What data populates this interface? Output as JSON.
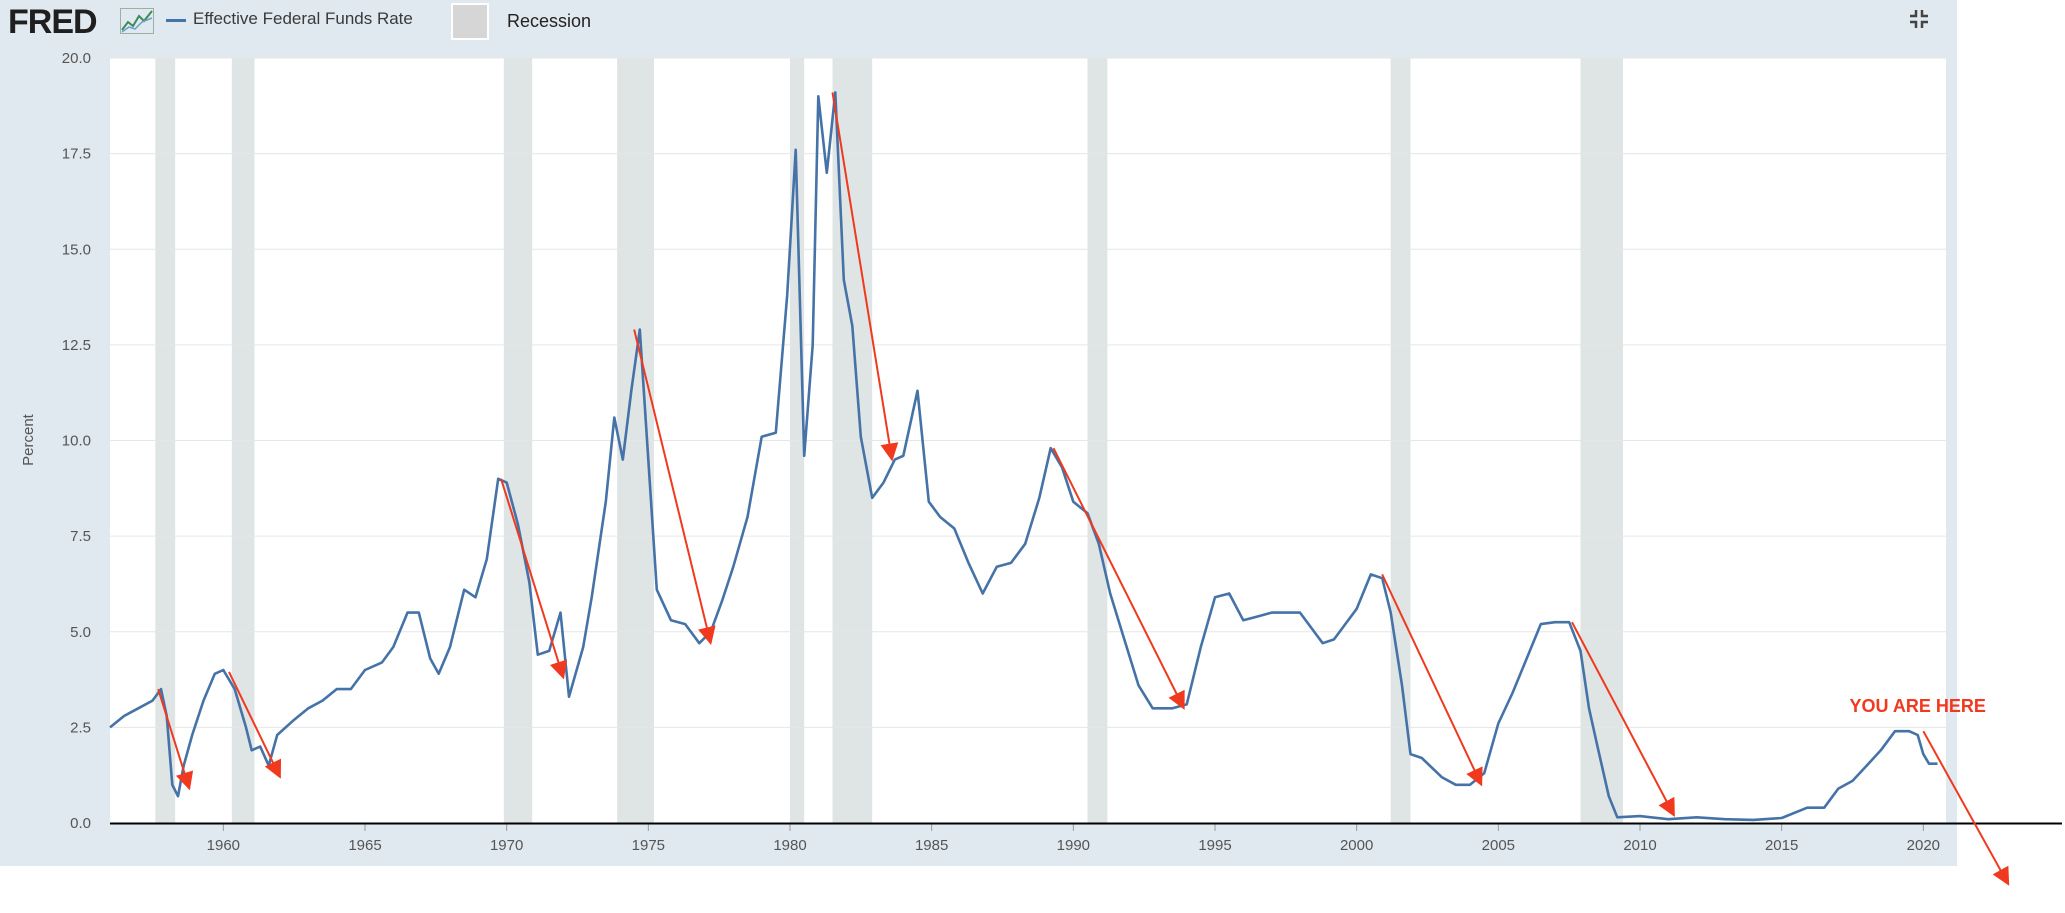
{
  "header": {
    "logo_text": "FRED",
    "logo_icon": "line-chart-icon",
    "series_label": "Effective Federal Funds Rate",
    "recession_label": "Recession",
    "fullscreen_icon": "exit-fullscreen-icon"
  },
  "colors": {
    "series": "#4572a7",
    "recession": "#dfe4e4",
    "arrow": "#f0391e",
    "panel": "#e1e9f0"
  },
  "chart_data": {
    "type": "line",
    "title": "",
    "xlabel": "",
    "ylabel": "Percent",
    "xlim": [
      1956.0,
      2020.8
    ],
    "ylim": [
      0,
      20
    ],
    "y_ticks": [
      "0.0",
      "2.5",
      "5.0",
      "7.5",
      "10.0",
      "12.5",
      "15.0",
      "17.5",
      "20.0"
    ],
    "x_ticks": [
      "1960",
      "1965",
      "1970",
      "1975",
      "1980",
      "1985",
      "1990",
      "1995",
      "2000",
      "2005",
      "2010",
      "2015",
      "2020"
    ],
    "grid": true,
    "legend": "top-left",
    "recessions": [
      [
        1957.6,
        1958.3
      ],
      [
        1960.3,
        1961.1
      ],
      [
        1969.9,
        1970.9
      ],
      [
        1973.9,
        1975.2
      ],
      [
        1980.0,
        1980.5
      ],
      [
        1981.5,
        1982.9
      ],
      [
        1990.5,
        1991.2
      ],
      [
        2001.2,
        2001.9
      ],
      [
        2007.9,
        2009.4
      ]
    ],
    "series": [
      {
        "name": "Effective Federal Funds Rate",
        "x": [
          1956.0,
          1956.5,
          1957.0,
          1957.5,
          1957.8,
          1958.0,
          1958.2,
          1958.4,
          1958.6,
          1958.9,
          1959.3,
          1959.7,
          1960.0,
          1960.4,
          1960.8,
          1961.0,
          1961.3,
          1961.6,
          1961.9,
          1962.5,
          1963.0,
          1963.5,
          1964.0,
          1964.5,
          1965.0,
          1965.6,
          1966.0,
          1966.5,
          1966.9,
          1967.3,
          1967.6,
          1968.0,
          1968.5,
          1968.9,
          1969.3,
          1969.7,
          1970.0,
          1970.4,
          1970.8,
          1971.1,
          1971.5,
          1971.9,
          1972.2,
          1972.7,
          1973.0,
          1973.5,
          1973.8,
          1974.1,
          1974.4,
          1974.7,
          1975.0,
          1975.3,
          1975.8,
          1976.3,
          1976.8,
          1977.2,
          1977.6,
          1978.0,
          1978.5,
          1979.0,
          1979.5,
          1979.9,
          1980.2,
          1980.5,
          1980.8,
          1981.0,
          1981.3,
          1981.6,
          1981.9,
          1982.2,
          1982.5,
          1982.9,
          1983.3,
          1983.7,
          1984.0,
          1984.5,
          1984.9,
          1985.3,
          1985.8,
          1986.3,
          1986.8,
          1987.3,
          1987.8,
          1988.3,
          1988.8,
          1989.2,
          1989.6,
          1990.0,
          1990.5,
          1990.9,
          1991.3,
          1991.8,
          1992.3,
          1992.8,
          1993.5,
          1994.0,
          1994.5,
          1995.0,
          1995.5,
          1996.0,
          1996.5,
          1997.0,
          1998.0,
          1998.8,
          1999.2,
          1999.6,
          2000.0,
          2000.5,
          2000.9,
          2001.2,
          2001.6,
          2001.9,
          2002.3,
          2003.0,
          2003.5,
          2004.0,
          2004.5,
          2005.0,
          2005.5,
          2006.0,
          2006.5,
          2007.0,
          2007.5,
          2007.9,
          2008.2,
          2008.5,
          2008.9,
          2009.2,
          2010.0,
          2011.0,
          2012.0,
          2013.0,
          2014.0,
          2015.0,
          2015.9,
          2016.5,
          2017.0,
          2017.5,
          2018.0,
          2018.5,
          2019.0,
          2019.5,
          2019.8,
          2020.0,
          2020.2,
          2020.4,
          2020.5
        ],
        "values": [
          2.5,
          2.8,
          3.0,
          3.2,
          3.5,
          2.8,
          1.0,
          0.7,
          1.5,
          2.3,
          3.2,
          3.9,
          4.0,
          3.5,
          2.5,
          1.9,
          2.0,
          1.5,
          2.3,
          2.7,
          3.0,
          3.2,
          3.5,
          3.5,
          4.0,
          4.2,
          4.6,
          5.5,
          5.5,
          4.3,
          3.9,
          4.6,
          6.1,
          5.9,
          6.9,
          9.0,
          8.9,
          7.8,
          6.3,
          4.4,
          4.5,
          5.5,
          3.3,
          4.6,
          5.9,
          8.4,
          10.6,
          9.5,
          11.3,
          12.9,
          9.5,
          6.1,
          5.3,
          5.2,
          4.7,
          5.0,
          5.8,
          6.7,
          8.0,
          10.1,
          10.2,
          13.8,
          17.6,
          9.6,
          12.5,
          19.0,
          17.0,
          19.1,
          14.2,
          13.0,
          10.1,
          8.5,
          8.9,
          9.5,
          9.6,
          11.3,
          8.4,
          8.0,
          7.7,
          6.8,
          6.0,
          6.7,
          6.8,
          7.3,
          8.5,
          9.8,
          9.3,
          8.4,
          8.1,
          7.3,
          6.0,
          4.8,
          3.6,
          3.0,
          3.0,
          3.1,
          4.6,
          5.9,
          6.0,
          5.3,
          5.4,
          5.5,
          5.5,
          4.7,
          4.8,
          5.2,
          5.6,
          6.5,
          6.4,
          5.5,
          3.6,
          1.8,
          1.7,
          1.2,
          1.0,
          1.0,
          1.3,
          2.6,
          3.4,
          4.3,
          5.2,
          5.25,
          5.25,
          4.5,
          3.0,
          2.0,
          0.7,
          0.15,
          0.18,
          0.1,
          0.15,
          0.1,
          0.08,
          0.13,
          0.4,
          0.4,
          0.9,
          1.1,
          1.5,
          1.9,
          2.4,
          2.4,
          2.3,
          1.8,
          1.55,
          1.55,
          1.55
        ]
      }
    ],
    "annotation_arrows": [
      {
        "from": [
          1957.7,
          3.5
        ],
        "to": [
          1958.8,
          0.9
        ]
      },
      {
        "from": [
          1960.2,
          3.95
        ],
        "to": [
          1962.0,
          1.2
        ]
      },
      {
        "from": [
          1969.8,
          9.0
        ],
        "to": [
          1972.0,
          3.8
        ]
      },
      {
        "from": [
          1974.5,
          12.9
        ],
        "to": [
          1977.2,
          4.7
        ]
      },
      {
        "from": [
          1981.5,
          19.1
        ],
        "to": [
          1983.6,
          9.5
        ]
      },
      {
        "from": [
          1989.3,
          9.8
        ],
        "to": [
          1993.9,
          3.0
        ]
      },
      {
        "from": [
          2000.9,
          6.5
        ],
        "to": [
          2004.4,
          1.0
        ]
      },
      {
        "from": [
          2007.6,
          5.25
        ],
        "to": [
          2011.2,
          0.2
        ]
      },
      {
        "from": [
          2020.0,
          2.4
        ],
        "to": [
          2023.0,
          -1.6
        ]
      }
    ],
    "annotations": [
      {
        "text": "YOU ARE HERE",
        "x": 2019.8,
        "y": 2.9
      }
    ]
  }
}
